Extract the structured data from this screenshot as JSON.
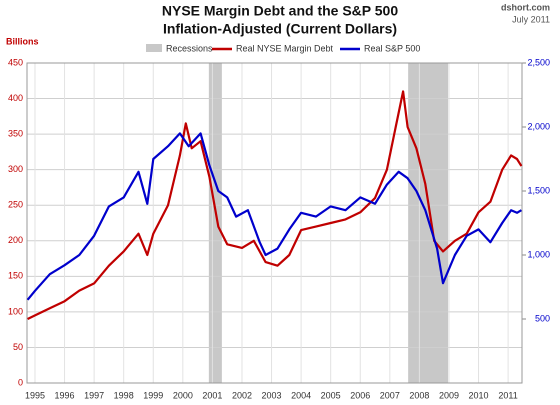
{
  "chart_data": {
    "type": "line",
    "title": "NYSE Margin Debt and the S&P 500",
    "subtitle": "Inflation-Adjusted (Current Dollars)",
    "source": "dshort.com",
    "date": "July 2011",
    "ylabel": "Billions",
    "xlim": [
      1994.73,
      2011.47
    ],
    "xticks": [
      {
        "value": 1995,
        "label": "1995"
      },
      {
        "value": 1996,
        "label": "1996"
      },
      {
        "value": 1997,
        "label": "1997"
      },
      {
        "value": 1998,
        "label": "1998"
      },
      {
        "value": 1999,
        "label": "1999"
      },
      {
        "value": 2000,
        "label": "2000"
      },
      {
        "value": 2001,
        "label": "2001"
      },
      {
        "value": 2002,
        "label": "2002"
      },
      {
        "value": 2003,
        "label": "2003"
      },
      {
        "value": 2004,
        "label": "2004"
      },
      {
        "value": 2005,
        "label": "2005"
      },
      {
        "value": 2006,
        "label": "2006"
      },
      {
        "value": 2007,
        "label": "2007"
      },
      {
        "value": 2008,
        "label": "2008"
      },
      {
        "value": 2009,
        "label": "2009"
      },
      {
        "value": 2010,
        "label": "2010"
      },
      {
        "value": 2011,
        "label": "2011"
      }
    ],
    "ylim": [
      0,
      450
    ],
    "yticks": [
      0,
      50,
      100,
      150,
      200,
      250,
      300,
      350,
      400,
      450
    ],
    "y2lim": [
      0,
      2500
    ],
    "y2ticks": [
      500,
      {
        "value": 1000,
        "label": "1,000"
      },
      {
        "value": 1500,
        "label": "1,500"
      },
      {
        "value": 2000,
        "label": "2,000"
      },
      {
        "value": 2500,
        "label": "2,500"
      }
    ],
    "grid": true,
    "recessions": {
      "name": "Recessions",
      "color": "#c8c8c8",
      "spans": [
        [
          2000.88,
          2001.32
        ],
        [
          2007.62,
          2008.97
        ]
      ]
    },
    "series": [
      {
        "name": "Real NYSE Margin Debt",
        "color": "#c00000",
        "axis": "y",
        "x": [
          1994.75,
          1995.0,
          1995.5,
          1996.0,
          1996.5,
          1997.0,
          1997.5,
          1998.0,
          1998.5,
          1998.8,
          1999.0,
          1999.5,
          1999.9,
          2000.1,
          2000.3,
          2000.6,
          2000.9,
          2001.2,
          2001.5,
          2002.0,
          2002.4,
          2002.8,
          2003.2,
          2003.6,
          2004.0,
          2004.5,
          2005.0,
          2005.5,
          2006.0,
          2006.5,
          2006.9,
          2007.2,
          2007.45,
          2007.6,
          2007.9,
          2008.2,
          2008.5,
          2008.8,
          2009.2,
          2009.6,
          2010.0,
          2010.4,
          2010.8,
          2011.1,
          2011.3,
          2011.45
        ],
        "values": [
          90,
          95,
          105,
          115,
          130,
          140,
          165,
          185,
          210,
          180,
          210,
          250,
          320,
          365,
          330,
          340,
          290,
          220,
          195,
          190,
          200,
          170,
          165,
          180,
          215,
          220,
          225,
          230,
          240,
          260,
          300,
          360,
          410,
          360,
          330,
          280,
          200,
          185,
          200,
          210,
          240,
          255,
          300,
          320,
          315,
          305
        ]
      },
      {
        "name": "Real S&P 500",
        "color": "#0000cc",
        "axis": "y2",
        "x": [
          1994.75,
          1995.0,
          1995.5,
          1996.0,
          1996.5,
          1997.0,
          1997.5,
          1998.0,
          1998.5,
          1998.8,
          1999.0,
          1999.5,
          1999.9,
          2000.2,
          2000.6,
          2000.9,
          2001.2,
          2001.5,
          2001.8,
          2002.2,
          2002.6,
          2002.8,
          2003.2,
          2003.6,
          2004.0,
          2004.5,
          2005.0,
          2005.5,
          2006.0,
          2006.5,
          2006.9,
          2007.3,
          2007.6,
          2007.9,
          2008.2,
          2008.6,
          2008.8,
          2009.2,
          2009.6,
          2010.0,
          2010.4,
          2010.8,
          2011.1,
          2011.3,
          2011.45
        ],
        "values": [
          650,
          720,
          850,
          920,
          1000,
          1150,
          1380,
          1450,
          1650,
          1400,
          1750,
          1850,
          1950,
          1850,
          1950,
          1700,
          1500,
          1450,
          1300,
          1350,
          1100,
          1000,
          1050,
          1200,
          1330,
          1300,
          1380,
          1350,
          1450,
          1400,
          1550,
          1650,
          1600,
          1500,
          1350,
          1050,
          780,
          1000,
          1150,
          1200,
          1100,
          1250,
          1350,
          1330,
          1350
        ]
      }
    ]
  }
}
